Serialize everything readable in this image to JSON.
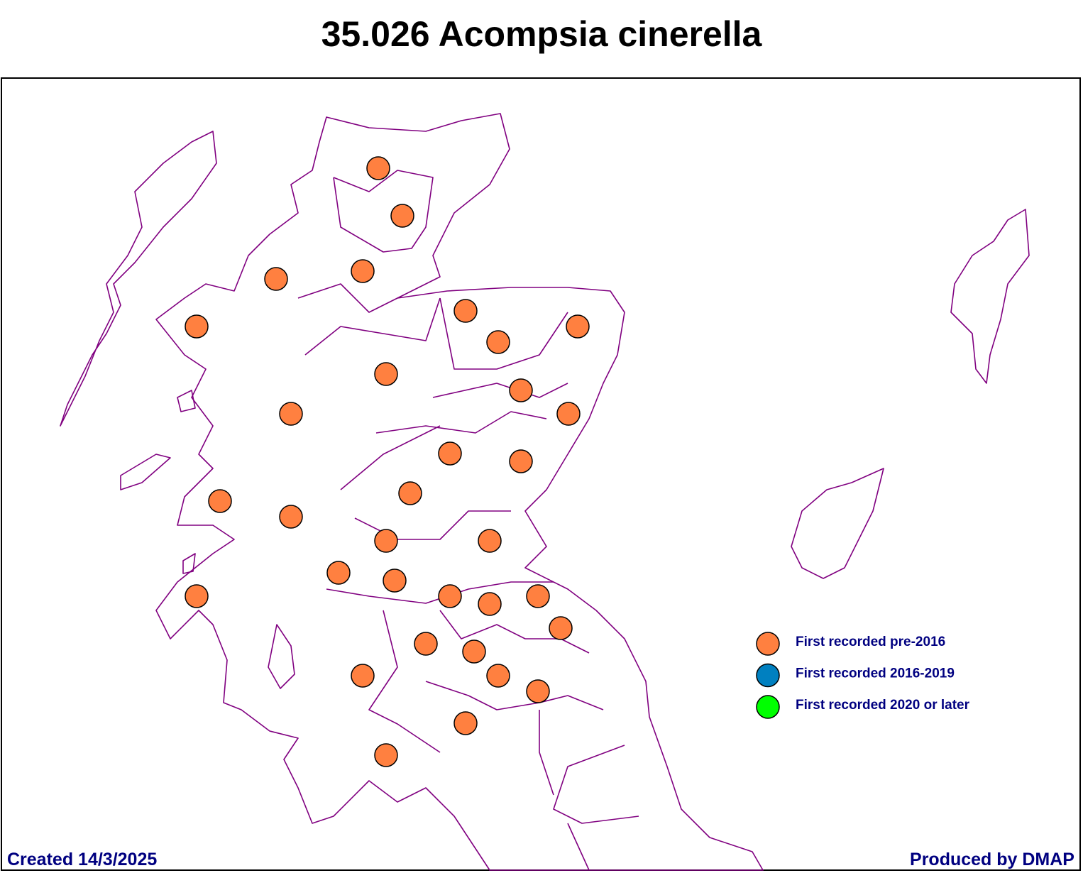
{
  "title": "35.026 Acompsia cinerella",
  "legend": [
    {
      "label": "First recorded pre-2016",
      "color": "#ff8040"
    },
    {
      "label": "First recorded 2016-2019",
      "color": "#0080c0"
    },
    {
      "label": "First recorded 2020 or later",
      "color": "#00ff00"
    }
  ],
  "footer": {
    "created": "Created 14/3/2025",
    "produced": "Produced by DMAP"
  }
}
